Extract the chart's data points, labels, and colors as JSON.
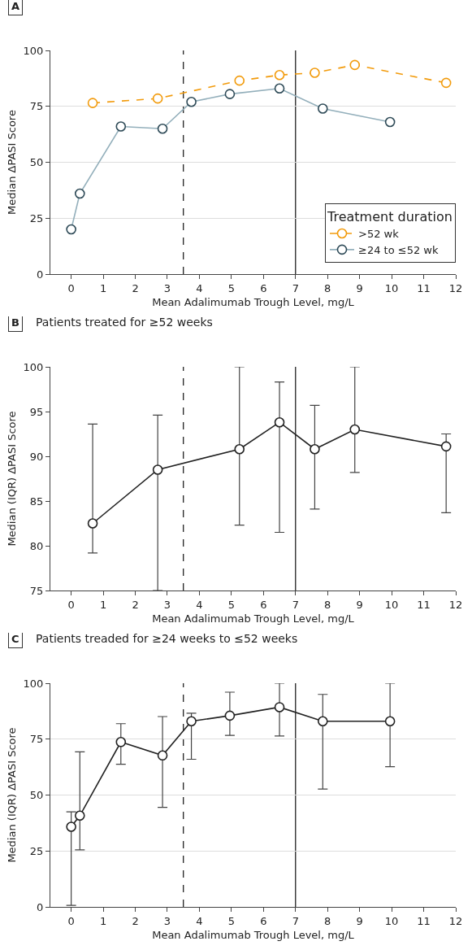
{
  "chart_data": [
    {
      "type": "line",
      "title": "A",
      "xlabel": "Mean Adalimumab Trough Level, mg/L",
      "ylabel": "Median ΔPASI Score",
      "legend_title": "Treatment duration",
      "legend": "bottom right",
      "marker": "circle",
      "grid": "y",
      "xlim": [
        -0.65,
        12
      ],
      "xticks": [
        0,
        1,
        2,
        3,
        4,
        5,
        6,
        7,
        8,
        9,
        10,
        11,
        12
      ],
      "ylim": [
        0,
        100
      ],
      "yticks": [
        0,
        25,
        50,
        75,
        100
      ],
      "ref_lines": [
        {
          "axis": "x",
          "value": 3.5,
          "label": null,
          "color": "#222222",
          "line_style": "dashed"
        },
        {
          "axis": "x",
          "value": 7,
          "label": null,
          "color": "#222222",
          "line_style": "solid"
        }
      ],
      "series": [
        {
          "name": ">52 wk",
          "color": "#f29b0c",
          "line_style": "dashed",
          "x": [
            0.67,
            2.7,
            5.25,
            6.5,
            7.6,
            8.85,
            11.7
          ],
          "values": [
            76.5,
            78.5,
            86.5,
            89,
            90,
            93.5,
            85.5
          ]
        },
        {
          "name": "≥24 to ≤52 wk",
          "color": "#93afbb",
          "line_style": "solid",
          "x": [
            0,
            0.27,
            1.55,
            2.85,
            3.75,
            4.95,
            6.5,
            7.85,
            9.95
          ],
          "values": [
            20,
            36,
            66,
            65,
            77,
            80.5,
            83,
            74,
            68
          ]
        }
      ]
    },
    {
      "type": "line",
      "title": "B",
      "subtitle": "Patients treated for ≥52 weeks",
      "xlabel": "Mean Adalimumab Trough Level, mg/L",
      "ylabel": "Median (IQR) ΔPASI Score",
      "legend": false,
      "marker": "circle",
      "grid": false,
      "xlim": [
        -0.65,
        12
      ],
      "xticks": [
        0,
        1,
        2,
        3,
        4,
        5,
        6,
        7,
        8,
        9,
        10,
        11,
        12
      ],
      "ylim": [
        75,
        100
      ],
      "yticks": [
        75,
        80,
        85,
        90,
        95,
        100
      ],
      "ref_lines": [
        {
          "axis": "x",
          "value": 3.5,
          "label": null,
          "color": "#222222",
          "line_style": "dashed"
        },
        {
          "axis": "x",
          "value": 7,
          "label": null,
          "color": "#222222",
          "line_style": "solid"
        }
      ],
      "series": [
        {
          "color": "#222222",
          "line_style": "solid",
          "x": [
            0.67,
            2.7,
            5.25,
            6.5,
            7.6,
            8.85,
            11.7
          ],
          "values": [
            82.5,
            88.5,
            90.8,
            93.8,
            90.8,
            93.0,
            91.1
          ],
          "errors": [
            [
              79.2,
              93.6
            ],
            [
              75,
              94.6
            ],
            [
              82.3,
              100
            ],
            [
              81.5,
              98.3
            ],
            [
              84.1,
              95.7
            ],
            [
              88.2,
              100
            ],
            [
              83.7,
              92.5
            ]
          ]
        }
      ]
    },
    {
      "type": "line",
      "title": "C",
      "subtitle": "Patients treaded for ≥24 weeks to ≤52 weeks",
      "xlabel": "Mean Adalimumab Trough Level, mg/L",
      "ylabel": "Median (IQR) ΔPASI Score",
      "legend": false,
      "marker": "circle",
      "grid": "y",
      "xlim": [
        -0.65,
        12
      ],
      "xticks": [
        0,
        1,
        2,
        3,
        4,
        5,
        6,
        7,
        8,
        9,
        10,
        11,
        12
      ],
      "ylim": [
        0,
        100
      ],
      "yticks": [
        0,
        25,
        50,
        75,
        100
      ],
      "ref_lines": [
        {
          "axis": "x",
          "value": 3.5,
          "label": null,
          "color": "#222222",
          "line_style": "dashed"
        },
        {
          "axis": "x",
          "value": 7,
          "label": null,
          "color": "#222222",
          "line_style": "solid"
        }
      ],
      "series": [
        {
          "color": "#222222",
          "line_style": "solid",
          "x": [
            0,
            0.27,
            1.55,
            2.85,
            3.75,
            4.95,
            6.5,
            7.85,
            9.95
          ],
          "values": [
            35.8,
            40.8,
            73.7,
            67.7,
            83,
            85.5,
            89.3,
            83,
            83
          ],
          "errors": [
            [
              0.7,
              42.5
            ],
            [
              25.5,
              69.3
            ],
            [
              63.8,
              81.9
            ],
            [
              44.5,
              85.1
            ],
            [
              66,
              86.6
            ],
            [
              76.7,
              96
            ],
            [
              76.4,
              100
            ],
            [
              52.7,
              95
            ],
            [
              62.7,
              100
            ]
          ]
        }
      ]
    }
  ]
}
